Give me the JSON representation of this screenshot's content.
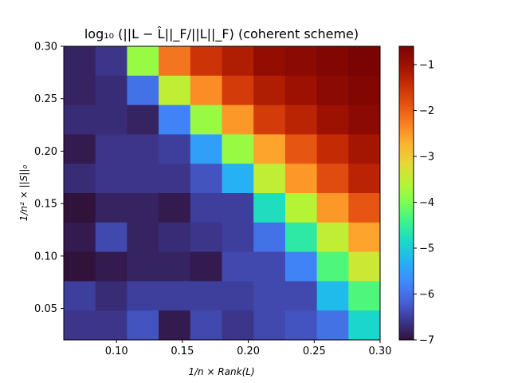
{
  "chart_data": {
    "type": "heatmap",
    "title": "log₁₀ (||L − L̂||_F/||L||_F) (coherent scheme)",
    "xlabel": "1/n × Rank(L)",
    "ylabel": "1/n² × ||S||₀",
    "x_edges": [
      0.06,
      0.084,
      0.108,
      0.132,
      0.156,
      0.18,
      0.204,
      0.228,
      0.252,
      0.276,
      0.3
    ],
    "y_edges": [
      0.02,
      0.048,
      0.076,
      0.104,
      0.132,
      0.16,
      0.188,
      0.216,
      0.244,
      0.272,
      0.3
    ],
    "xlim": [
      0.06,
      0.3
    ],
    "ylim": [
      0.02,
      0.3
    ],
    "x_ticks": [
      0.1,
      0.15,
      0.2,
      0.25,
      0.3
    ],
    "x_tick_labels": [
      "0.10",
      "0.15",
      "0.20",
      "0.25",
      "0.30"
    ],
    "y_ticks": [
      0.05,
      0.1,
      0.15,
      0.2,
      0.25,
      0.3
    ],
    "y_tick_labels": [
      "0.05",
      "0.10",
      "0.15",
      "0.20",
      "0.25",
      "0.30"
    ],
    "colorbar": {
      "min": -7.0,
      "max": -0.6,
      "ticks": [
        -1,
        -2,
        -3,
        -4,
        -5,
        -6,
        -7
      ],
      "tick_labels": [
        "−1",
        "−2",
        "−3",
        "−4",
        "−5",
        "−6",
        "−7"
      ],
      "colormap": "turbo"
    },
    "values_top_to_bottom": [
      [
        -6.8,
        -6.6,
        -3.8,
        -2.2,
        -1.5,
        -1.2,
        -0.9,
        -0.8,
        -0.7,
        -0.6
      ],
      [
        -6.8,
        -6.7,
        -6.0,
        -3.5,
        -2.4,
        -1.6,
        -1.2,
        -1.0,
        -0.8,
        -0.7
      ],
      [
        -6.7,
        -6.7,
        -6.8,
        -5.8,
        -3.8,
        -2.5,
        -1.6,
        -1.3,
        -1.0,
        -0.8
      ],
      [
        -6.9,
        -6.6,
        -6.6,
        -6.5,
        -5.5,
        -3.8,
        -2.6,
        -1.9,
        -1.4,
        -1.1
      ],
      [
        -6.7,
        -6.6,
        -6.6,
        -6.6,
        -6.3,
        -5.3,
        -3.5,
        -2.5,
        -1.8,
        -1.3
      ],
      [
        -7.0,
        -6.8,
        -6.8,
        -6.9,
        -6.5,
        -6.5,
        -4.8,
        -3.6,
        -2.5,
        -1.9
      ],
      [
        -6.9,
        -6.4,
        -6.8,
        -6.7,
        -6.6,
        -6.5,
        -6.0,
        -4.6,
        -3.5,
        -2.6
      ],
      [
        -7.0,
        -6.9,
        -6.8,
        -6.8,
        -6.9,
        -6.4,
        -6.4,
        -5.8,
        -4.3,
        -3.4
      ],
      [
        -6.5,
        -6.7,
        -6.5,
        -6.5,
        -6.5,
        -6.5,
        -6.4,
        -6.4,
        -5.2,
        -4.3
      ],
      [
        -6.6,
        -6.6,
        -6.3,
        -6.9,
        -6.4,
        -6.6,
        -6.4,
        -6.3,
        -6.0,
        -4.9
      ]
    ]
  }
}
